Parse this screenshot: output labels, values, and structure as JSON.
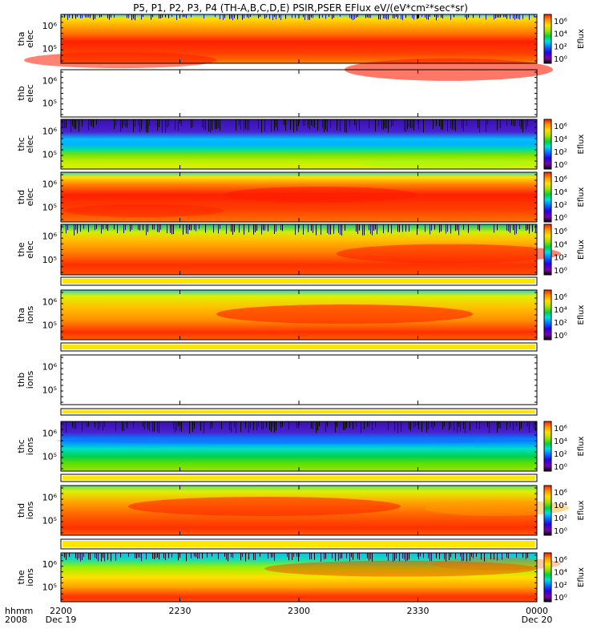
{
  "title": "P5, P1, P2, P3, P4 (TH-A,B,C,D,E) PSIR,PSER EFlux eV/(eV*cm²*sec*sr)",
  "chart_data": {
    "type": "heatmap",
    "title": "P5, P1, P2, P3, P4 (TH-A,B,C,D,E) PSIR,PSER EFlux eV/(eV*cm²*sec*sr)",
    "xlabel": "hhmm",
    "x_year": "2008",
    "x_date_start": "Dec 19",
    "x_date_end": "Dec 20",
    "x_ticks": [
      "2200",
      "2230",
      "2300",
      "2330",
      "0000"
    ],
    "x_range": [
      "2008-12-19 22:00",
      "2008-12-20 00:00"
    ],
    "colorbar": {
      "label": "Eflux",
      "scale": "log",
      "tick_exponents": [
        0,
        2,
        4,
        6
      ],
      "ticks": [
        "10⁰",
        "10²",
        "10⁴",
        "10⁶"
      ],
      "colors": [
        "#000000",
        "#7a00a8",
        "#2a00e0",
        "#0080ff",
        "#00e0e0",
        "#00d040",
        "#a0e000",
        "#ffe000",
        "#ff9000",
        "#ff1c00"
      ]
    },
    "panels": [
      {
        "id": "tha_elec",
        "label": [
          "tha",
          "elec"
        ],
        "yticks": [
          "10⁶",
          "10⁵"
        ],
        "has_data": true,
        "colorbar": true
      },
      {
        "id": "thb_elec",
        "label": [
          "thb",
          "elec"
        ],
        "yticks": [
          "10⁶",
          "10⁵"
        ],
        "has_data": false,
        "colorbar": false
      },
      {
        "id": "thc_elec",
        "label": [
          "thc",
          "elec"
        ],
        "yticks": [
          "10⁶",
          "10⁵"
        ],
        "has_data": true,
        "colorbar": true
      },
      {
        "id": "thd_elec",
        "label": [
          "thd",
          "elec"
        ],
        "yticks": [
          "10⁶",
          "10⁵"
        ],
        "has_data": true,
        "colorbar": true
      },
      {
        "id": "the_elec",
        "label": [
          "the",
          "elec"
        ],
        "yticks": [
          "10⁶",
          "10⁵"
        ],
        "has_data": true,
        "colorbar": true
      },
      {
        "id": "tha_ions",
        "label": [
          "tha",
          "ions"
        ],
        "yticks": [
          "10⁶",
          "10⁵"
        ],
        "has_data": true,
        "colorbar": true
      },
      {
        "id": "thb_ions",
        "label": [
          "thb",
          "ions"
        ],
        "yticks": [
          "10⁶",
          "10⁵"
        ],
        "has_data": false,
        "colorbar": false
      },
      {
        "id": "thc_ions",
        "label": [
          "thc",
          "ions"
        ],
        "yticks": [
          "10⁶",
          "10⁵"
        ],
        "has_data": true,
        "colorbar": true
      },
      {
        "id": "thd_ions",
        "label": [
          "thd",
          "ions"
        ],
        "yticks": [
          "10⁶",
          "10⁵"
        ],
        "has_data": true,
        "colorbar": true
      },
      {
        "id": "the_ions",
        "label": [
          "the",
          "ions"
        ],
        "yticks": [
          "10⁶",
          "10⁵"
        ],
        "has_data": true,
        "colorbar": true
      }
    ]
  },
  "footer": {
    "hhmm": "hhmm",
    "year": "2008",
    "date_start": "Dec 19",
    "date_end": "Dec 20"
  }
}
